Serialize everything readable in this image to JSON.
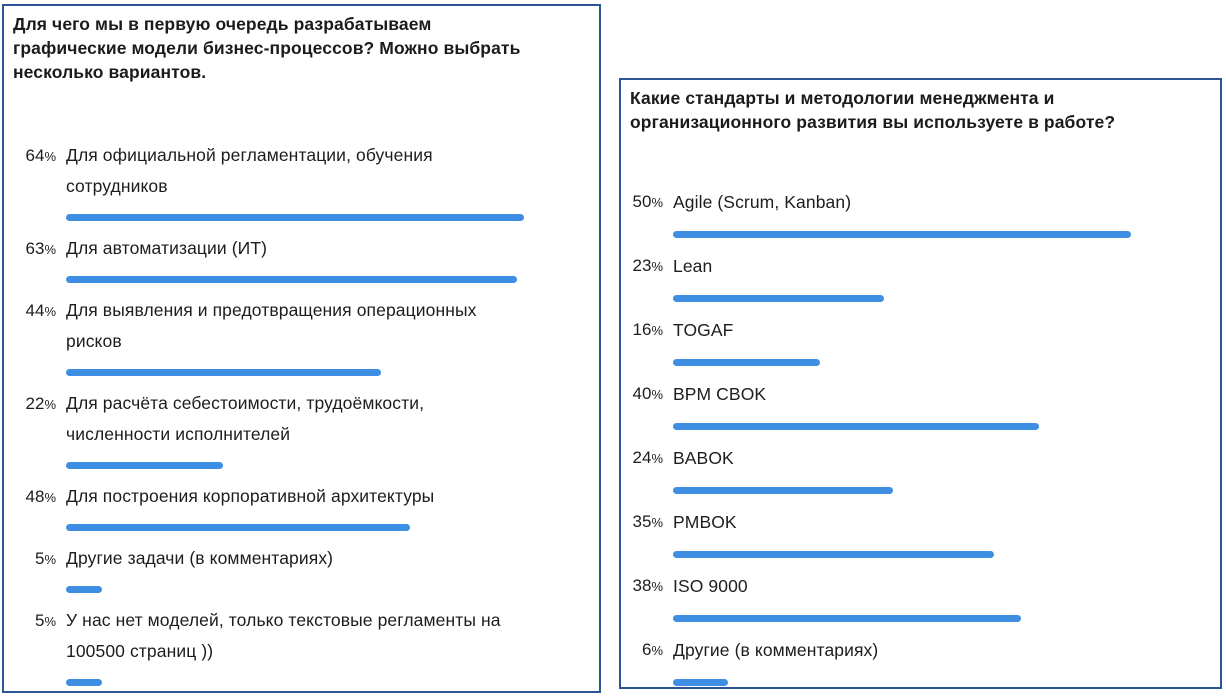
{
  "colors": {
    "accent": "#3e8ee3",
    "panel_border": "#2b5596",
    "text": "#1d1d1d"
  },
  "chart_data": [
    {
      "type": "bar",
      "orientation": "horizontal",
      "value_format": "percent",
      "normalized_to_max": true,
      "title": "Для чего мы в первую очередь разрабатываем\nграфические модели бизнес-процессов? Можно выбрать\nнесколько вариантов.",
      "categories": [
        "Для официальной регламентации, обучения\nсотрудников",
        "Для автоматизации (ИТ)",
        "Для выявления и предотвращения операционных\nрисков",
        "Для расчёта себестоимости, трудоёмкости,\nчисленности исполнителей",
        "Для построения корпоративной архитектуры",
        "Другие задачи (в комментариях)",
        "У нас нет моделей, только текстовые регламенты на\n100500 страниц ))"
      ],
      "values": [
        64,
        63,
        44,
        22,
        48,
        5,
        5
      ]
    },
    {
      "type": "bar",
      "orientation": "horizontal",
      "value_format": "percent",
      "normalized_to_max": true,
      "title": "Какие стандарты и методологии менеджмента и\nорганизационного развития вы используете в работе?",
      "categories": [
        "Agile (Scrum, Kanban)",
        "Lean",
        "TOGAF",
        "BPM CBOK",
        "BABOK",
        "PMBOK",
        "ISO 9000",
        "Другие (в комментариях)"
      ],
      "values": [
        50,
        23,
        16,
        40,
        24,
        35,
        38,
        6
      ]
    }
  ]
}
